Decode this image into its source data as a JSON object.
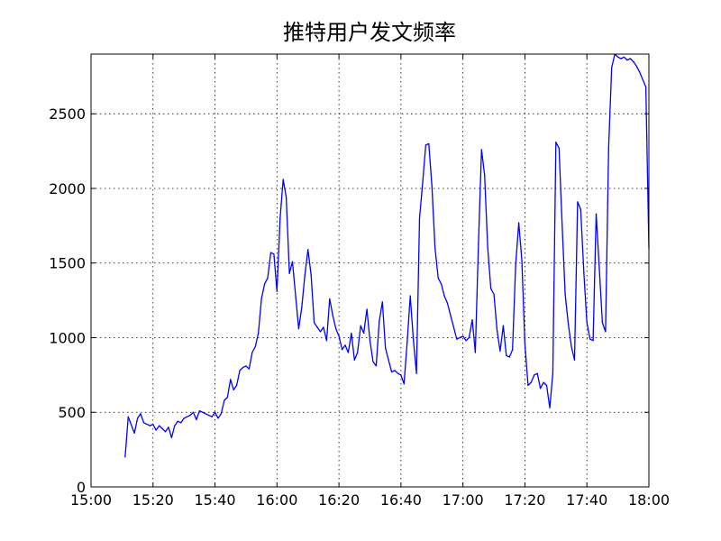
{
  "chart_data": {
    "type": "line",
    "title": "推特用户发文频率",
    "xlabel": "",
    "ylabel": "",
    "x_unit": "time (HH:MM)",
    "xlim": [
      "15:00",
      "18:00"
    ],
    "ylim": [
      0,
      2900
    ],
    "grid": true,
    "x_tick_labels": [
      "15:00",
      "15:20",
      "15:40",
      "16:00",
      "16:20",
      "16:40",
      "17:00",
      "17:20",
      "17:40",
      "18:00"
    ],
    "y_tick_labels": [
      "0",
      "500",
      "1000",
      "1500",
      "2000",
      "2500"
    ],
    "y_ticks": [
      0,
      500,
      1000,
      1500,
      2000,
      2500
    ],
    "series": [
      {
        "color": "#0000ff",
        "x": [
          "15:11",
          "15:12",
          "15:14",
          "15:15",
          "15:16",
          "15:17",
          "15:19",
          "15:20",
          "15:21",
          "15:22",
          "15:23",
          "15:24",
          "15:25",
          "15:26",
          "15:27",
          "15:28",
          "15:29",
          "15:30",
          "15:31",
          "15:32",
          "15:33",
          "15:34",
          "15:35",
          "15:36",
          "15:37",
          "15:38",
          "15:39",
          "15:40",
          "15:41",
          "15:42",
          "15:43",
          "15:44",
          "15:45",
          "15:46",
          "15:47",
          "15:48",
          "15:49",
          "15:50",
          "15:51",
          "15:52",
          "15:53",
          "15:54",
          "15:55",
          "15:56",
          "15:57",
          "15:58",
          "15:59",
          "16:00",
          "16:01",
          "16:02",
          "16:03",
          "16:04",
          "16:05",
          "16:06",
          "16:07",
          "16:08",
          "16:09",
          "16:10",
          "16:11",
          "16:12",
          "16:13",
          "16:14",
          "16:15",
          "16:16",
          "16:17",
          "16:18",
          "16:19",
          "16:20",
          "16:21",
          "16:22",
          "16:23",
          "16:24",
          "16:25",
          "16:26",
          "16:27",
          "16:28",
          "16:29",
          "16:30",
          "16:31",
          "16:32",
          "16:33",
          "16:34",
          "16:35",
          "16:36",
          "16:37",
          "16:38",
          "16:39",
          "16:40",
          "16:41",
          "16:42",
          "16:43",
          "16:44",
          "16:45",
          "16:46",
          "16:47",
          "16:48",
          "16:49",
          "16:50",
          "16:51",
          "16:52",
          "16:53",
          "16:54",
          "16:55",
          "16:56",
          "16:57",
          "16:58",
          "16:59",
          "17:00",
          "17:01",
          "17:02",
          "17:03",
          "17:04",
          "17:05",
          "17:06",
          "17:07",
          "17:08",
          "17:09",
          "17:10",
          "17:11",
          "17:12",
          "17:13",
          "17:14",
          "17:15",
          "17:16",
          "17:17",
          "17:18",
          "17:19",
          "17:20",
          "17:21",
          "17:22",
          "17:23",
          "17:24",
          "17:25",
          "17:26",
          "17:27",
          "17:28",
          "17:29",
          "17:30",
          "17:31",
          "17:32",
          "17:33",
          "17:34",
          "17:35",
          "17:36",
          "17:37",
          "17:38",
          "17:39",
          "17:40",
          "17:41",
          "17:42",
          "17:43",
          "17:44",
          "17:45",
          "17:46",
          "17:47",
          "17:48",
          "17:49",
          "17:50",
          "17:51",
          "17:52",
          "17:53",
          "17:54",
          "17:55",
          "17:56",
          "17:57",
          "17:58",
          "17:59",
          "18:00"
        ],
        "y": [
          200,
          470,
          360,
          460,
          490,
          430,
          410,
          420,
          380,
          410,
          390,
          370,
          400,
          330,
          410,
          440,
          430,
          460,
          470,
          480,
          500,
          450,
          510,
          500,
          490,
          480,
          470,
          500,
          460,
          490,
          580,
          600,
          720,
          650,
          680,
          780,
          800,
          810,
          790,
          900,
          940,
          1030,
          1260,
          1360,
          1400,
          1570,
          1560,
          1310,
          1800,
          2060,
          1940,
          1430,
          1510,
          1280,
          1060,
          1200,
          1420,
          1590,
          1420,
          1100,
          1070,
          1040,
          1070,
          980,
          1260,
          1150,
          1060,
          1010,
          920,
          950,
          900,
          1030,
          850,
          900,
          1080,
          1030,
          1190,
          980,
          840,
          810,
          1110,
          1240,
          930,
          850,
          770,
          780,
          760,
          750,
          690,
          970,
          1280,
          990,
          760,
          1800,
          2040,
          2290,
          2300,
          2010,
          1600,
          1400,
          1360,
          1280,
          1230,
          1150,
          1070,
          990,
          1000,
          1010,
          980,
          1000,
          1120,
          900,
          1630,
          2260,
          2090,
          1600,
          1330,
          1290,
          1050,
          910,
          1080,
          880,
          870,
          920,
          1480,
          1770,
          1520,
          960,
          680,
          700,
          750,
          760,
          660,
          700,
          680,
          530,
          760,
          2310,
          2270,
          1760,
          1290,
          1090,
          940,
          850,
          1910,
          1860,
          1440,
          1100,
          990,
          980,
          1830,
          1460,
          1100,
          1040,
          2270,
          2810,
          2900,
          2880,
          2870,
          2880,
          2860,
          2870,
          2850,
          2820,
          2780,
          2730,
          2680,
          1600
        ]
      }
    ]
  }
}
